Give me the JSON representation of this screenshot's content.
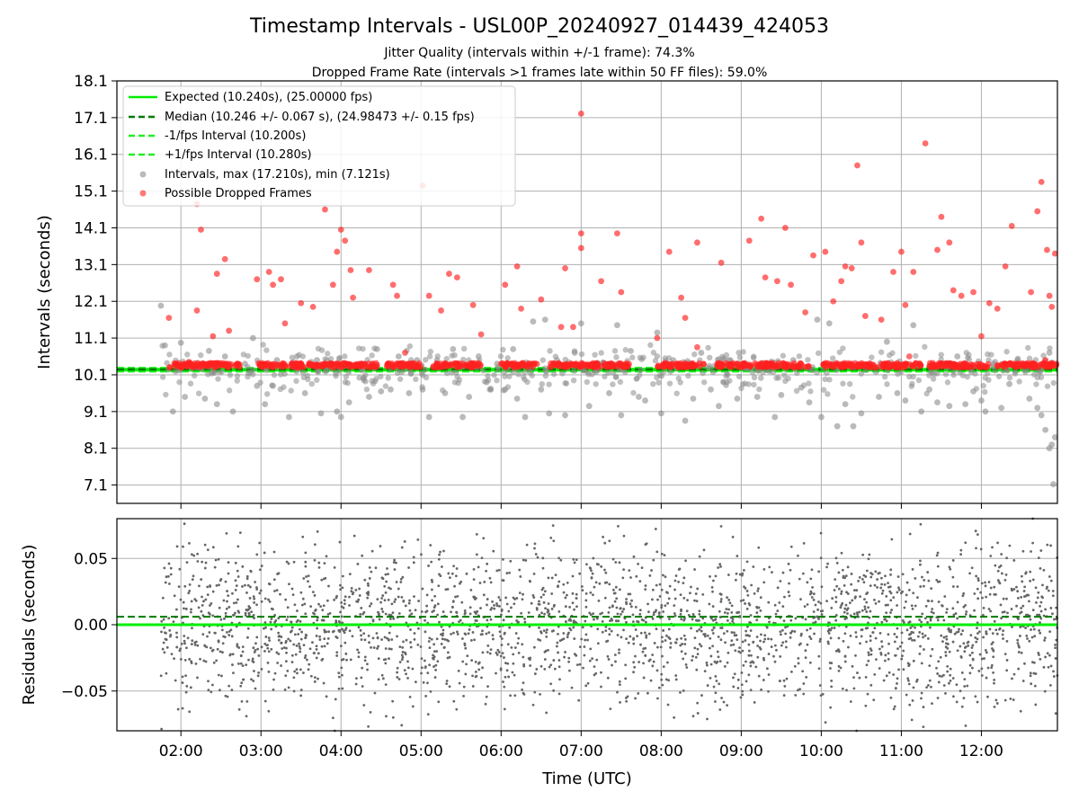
{
  "figure": {
    "title": "Timestamp Intervals - USL00P_20240927_014439_424053",
    "subtitle_1": "Jitter Quality (intervals within +/-1 frame): 74.3%",
    "subtitle_2": "Dropped Frame Rate (intervals >1 frames late within 50 FF files): 59.0%"
  },
  "colors": {
    "expected": "#00ee00",
    "median": "#007a00",
    "interval_bounds": "#22ee22",
    "intervals": "#8c8c8c",
    "dropped": "#ff2020",
    "residuals": "#666666",
    "grid": "#b0b0b0"
  },
  "chart_data": [
    {
      "type": "scatter",
      "xlabel": "",
      "ylabel": "Intervals (seconds)",
      "xlim": [
        1.2,
        12.95
      ],
      "ylim": [
        6.6,
        18.1
      ],
      "grid": true,
      "legend_position": "upper-left",
      "yticks": [
        "7.1",
        "8.1",
        "9.1",
        "10.1",
        "11.1",
        "12.1",
        "13.1",
        "14.1",
        "15.1",
        "16.1",
        "17.1",
        "18.1"
      ],
      "ytick_values": [
        7.1,
        8.1,
        9.1,
        10.1,
        11.1,
        12.1,
        13.1,
        14.1,
        15.1,
        16.1,
        17.1,
        18.1
      ],
      "series": [
        {
          "name": "Expected (10.240s), (25.00000 fps)",
          "kind": "hline",
          "y": 10.24
        },
        {
          "name": "Median (10.246 +/- 0.067 s), (24.98473 +/- 0.15 fps)",
          "kind": "hline-dashed",
          "y": 10.246
        },
        {
          "name": "-1/fps Interval (10.200s)",
          "kind": "hline-dashed",
          "y": 10.2
        },
        {
          "name": "+1/fps Interval (10.280s)",
          "kind": "hline-dashed",
          "y": 10.28
        },
        {
          "name": "Intervals, max (17.210s), min (7.121s)",
          "kind": "scatter",
          "points": [
            [
              1.75,
              11.98
            ],
            [
              1.8,
              10.9
            ],
            [
              1.9,
              9.1
            ],
            [
              2.0,
              10.97
            ],
            [
              2.05,
              9.5
            ],
            [
              2.2,
              10.3
            ],
            [
              2.3,
              9.45
            ],
            [
              2.35,
              10.75
            ],
            [
              2.45,
              9.3
            ],
            [
              2.55,
              10.6
            ],
            [
              2.65,
              9.1
            ],
            [
              2.8,
              10.4
            ],
            [
              2.9,
              11.1
            ],
            [
              2.95,
              9.8
            ],
            [
              3.05,
              9.3
            ],
            [
              3.15,
              9.8
            ],
            [
              3.2,
              10.5
            ],
            [
              3.35,
              8.95
            ],
            [
              3.45,
              10.6
            ],
            [
              3.55,
              9.6
            ],
            [
              3.7,
              10.5
            ],
            [
              3.75,
              9.05
            ],
            [
              3.85,
              10.3
            ],
            [
              3.95,
              9.1
            ],
            [
              4.0,
              8.95
            ],
            [
              4.05,
              10.4
            ],
            [
              4.1,
              9.35
            ],
            [
              4.25,
              10.3
            ],
            [
              4.35,
              9.5
            ],
            [
              4.45,
              10.8
            ],
            [
              4.5,
              9.65
            ],
            [
              4.62,
              9.7
            ],
            [
              4.72,
              10.6
            ],
            [
              4.85,
              9.6
            ],
            [
              4.95,
              10.5
            ],
            [
              5.02,
              9.7
            ],
            [
              5.1,
              8.95
            ],
            [
              5.2,
              10.5
            ],
            [
              5.3,
              9.6
            ],
            [
              5.4,
              10.8
            ],
            [
              5.52,
              8.95
            ],
            [
              5.6,
              9.5
            ],
            [
              5.72,
              10.6
            ],
            [
              5.82,
              9.9
            ],
            [
              5.95,
              10.4
            ],
            [
              6.05,
              9.7
            ],
            [
              6.15,
              10.8
            ],
            [
              6.2,
              9.45
            ],
            [
              6.3,
              8.95
            ],
            [
              6.4,
              11.55
            ],
            [
              6.5,
              9.7
            ],
            [
              6.55,
              11.6
            ],
            [
              6.6,
              9.05
            ],
            [
              6.7,
              10.5
            ],
            [
              6.8,
              9.0
            ],
            [
              6.92,
              10.7
            ],
            [
              7.0,
              11.5
            ],
            [
              7.1,
              9.25
            ],
            [
              7.2,
              10.4
            ],
            [
              7.35,
              9.6
            ],
            [
              7.45,
              11.45
            ],
            [
              7.5,
              9.0
            ],
            [
              7.62,
              10.75
            ],
            [
              7.72,
              9.5
            ],
            [
              7.8,
              9.4
            ],
            [
              7.95,
              11.25
            ],
            [
              8.0,
              9.05
            ],
            [
              8.15,
              10.5
            ],
            [
              8.3,
              8.85
            ],
            [
              8.4,
              9.45
            ],
            [
              8.5,
              10.7
            ],
            [
              8.62,
              9.7
            ],
            [
              8.72,
              9.25
            ],
            [
              8.85,
              10.5
            ],
            [
              8.95,
              9.45
            ],
            [
              9.1,
              10.3
            ],
            [
              9.2,
              9.5
            ],
            [
              9.35,
              10.2
            ],
            [
              9.42,
              8.95
            ],
            [
              9.5,
              9.55
            ],
            [
              9.65,
              10.5
            ],
            [
              9.75,
              9.75
            ],
            [
              9.85,
              9.35
            ],
            [
              9.95,
              11.6
            ],
            [
              10.0,
              8.95
            ],
            [
              10.1,
              11.5
            ],
            [
              10.2,
              8.7
            ],
            [
              10.3,
              9.3
            ],
            [
              10.4,
              8.7
            ],
            [
              10.5,
              9.05
            ],
            [
              10.6,
              10.4
            ],
            [
              10.72,
              9.5
            ],
            [
              10.82,
              11.0
            ],
            [
              10.95,
              9.6
            ],
            [
              11.05,
              9.4
            ],
            [
              11.15,
              11.45
            ],
            [
              11.25,
              9.1
            ],
            [
              11.35,
              9.7
            ],
            [
              11.45,
              9.35
            ],
            [
              11.55,
              10.4
            ],
            [
              11.6,
              9.25
            ],
            [
              11.7,
              10.6
            ],
            [
              11.8,
              9.3
            ],
            [
              11.9,
              9.65
            ],
            [
              12.0,
              9.4
            ],
            [
              12.05,
              9.1
            ],
            [
              12.15,
              10.4
            ],
            [
              12.25,
              9.2
            ],
            [
              12.35,
              9.85
            ],
            [
              12.45,
              10.5
            ],
            [
              12.6,
              9.45
            ],
            [
              12.7,
              9.2
            ],
            [
              12.75,
              9.0
            ],
            [
              12.8,
              8.6
            ],
            [
              12.85,
              8.1
            ],
            [
              12.88,
              8.2
            ],
            [
              12.9,
              7.121
            ],
            [
              12.92,
              8.4
            ],
            [
              12.85,
              10.7
            ]
          ]
        },
        {
          "name": "Possible Dropped Frames",
          "kind": "scatter",
          "points": [
            [
              1.85,
              11.65
            ],
            [
              2.1,
              10.45
            ],
            [
              2.2,
              14.75
            ],
            [
              2.25,
              14.05
            ],
            [
              2.2,
              11.85
            ],
            [
              2.4,
              11.15
            ],
            [
              2.45,
              12.85
            ],
            [
              2.55,
              13.25
            ],
            [
              2.6,
              11.3
            ],
            [
              2.95,
              12.7
            ],
            [
              3.1,
              12.9
            ],
            [
              3.15,
              12.55
            ],
            [
              3.25,
              12.7
            ],
            [
              3.3,
              11.5
            ],
            [
              3.5,
              12.05
            ],
            [
              3.65,
              11.95
            ],
            [
              3.8,
              14.6
            ],
            [
              3.9,
              12.55
            ],
            [
              3.95,
              13.45
            ],
            [
              4.0,
              14.05
            ],
            [
              4.05,
              13.75
            ],
            [
              4.12,
              12.95
            ],
            [
              4.15,
              12.2
            ],
            [
              4.35,
              12.95
            ],
            [
              4.65,
              12.55
            ],
            [
              4.7,
              12.25
            ],
            [
              4.8,
              10.7
            ],
            [
              5.02,
              15.25
            ],
            [
              5.1,
              12.25
            ],
            [
              5.25,
              11.85
            ],
            [
              5.35,
              12.85
            ],
            [
              5.45,
              12.75
            ],
            [
              5.65,
              12.0
            ],
            [
              6.05,
              12.55
            ],
            [
              6.2,
              13.05
            ],
            [
              6.25,
              11.9
            ],
            [
              6.5,
              12.15
            ],
            [
              6.8,
              13.0
            ],
            [
              6.9,
              11.4
            ],
            [
              7.0,
              17.21
            ],
            [
              7.0,
              13.95
            ],
            [
              7.0,
              13.55
            ],
            [
              7.25,
              12.65
            ],
            [
              7.45,
              13.95
            ],
            [
              7.5,
              12.35
            ],
            [
              7.95,
              11.1
            ],
            [
              8.1,
              13.45
            ],
            [
              8.25,
              12.2
            ],
            [
              8.3,
              11.65
            ],
            [
              8.45,
              13.7
            ],
            [
              8.75,
              13.15
            ],
            [
              9.1,
              13.75
            ],
            [
              9.25,
              14.35
            ],
            [
              9.3,
              12.75
            ],
            [
              9.45,
              12.65
            ],
            [
              9.55,
              14.1
            ],
            [
              9.62,
              12.55
            ],
            [
              9.9,
              13.35
            ],
            [
              10.05,
              13.45
            ],
            [
              10.15,
              12.1
            ],
            [
              10.25,
              12.65
            ],
            [
              10.3,
              13.05
            ],
            [
              10.38,
              13.0
            ],
            [
              10.45,
              15.8
            ],
            [
              10.5,
              13.7
            ],
            [
              10.55,
              11.7
            ],
            [
              10.75,
              11.6
            ],
            [
              10.9,
              12.9
            ],
            [
              11.0,
              13.45
            ],
            [
              11.05,
              12.0
            ],
            [
              11.15,
              12.9
            ],
            [
              11.3,
              16.4
            ],
            [
              11.45,
              13.5
            ],
            [
              11.5,
              14.4
            ],
            [
              11.6,
              13.7
            ],
            [
              11.65,
              12.4
            ],
            [
              11.75,
              12.25
            ],
            [
              11.9,
              12.35
            ],
            [
              12.0,
              11.15
            ],
            [
              12.1,
              12.05
            ],
            [
              12.2,
              11.9
            ],
            [
              12.3,
              13.05
            ],
            [
              12.38,
              14.15
            ],
            [
              12.62,
              12.35
            ],
            [
              12.7,
              14.55
            ],
            [
              12.75,
              15.35
            ],
            [
              12.82,
              13.5
            ],
            [
              12.85,
              12.25
            ],
            [
              12.88,
              11.95
            ],
            [
              12.92,
              13.4
            ],
            [
              12.8,
              10.5
            ],
            [
              9.8,
              11.8
            ],
            [
              8.45,
              10.85
            ],
            [
              5.75,
              11.2
            ],
            [
              6.75,
              11.4
            ],
            [
              11.1,
              10.6
            ]
          ]
        }
      ]
    },
    {
      "type": "scatter",
      "xlabel": "Time (UTC)",
      "ylabel": "Residuals (seconds)",
      "xlim": [
        1.2,
        12.95
      ],
      "ylim": [
        -0.08,
        0.08
      ],
      "grid": true,
      "yticks": [
        "0.05",
        "0.00",
        "−0.05"
      ],
      "ytick_values": [
        0.05,
        0.0,
        -0.05
      ],
      "xticks": [
        "02:00",
        "03:00",
        "04:00",
        "05:00",
        "06:00",
        "07:00",
        "08:00",
        "09:00",
        "10:00",
        "11:00",
        "12:00"
      ],
      "xtick_values": [
        2,
        3,
        4,
        5,
        6,
        7,
        8,
        9,
        10,
        11,
        12
      ],
      "series": [
        {
          "name": "",
          "kind": "hline",
          "y": 0.0
        },
        {
          "name": "",
          "kind": "hline-dashed",
          "y": 0.006
        },
        {
          "name": "",
          "kind": "scatter",
          "range": [
            -0.08,
            0.08
          ],
          "x_start": 1.75,
          "x_end": 12.95,
          "count": 2600
        }
      ]
    }
  ]
}
